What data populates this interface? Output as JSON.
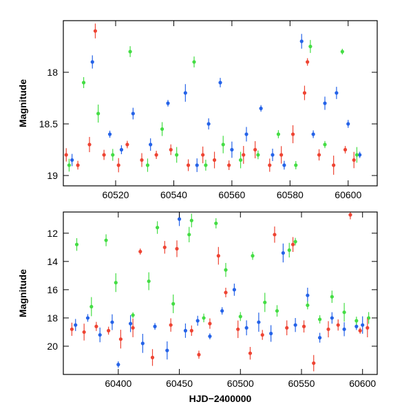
{
  "chart_data": [
    {
      "type": "scatter",
      "panel": "top",
      "xlabel": "",
      "ylabel": "Magnitude",
      "xlim": [
        60502,
        60610
      ],
      "ylim": [
        19.1,
        17.5
      ],
      "y_inverted": true,
      "xticks": [
        60520,
        60540,
        60560,
        60580,
        60600
      ],
      "xtick_labels": [
        "60520",
        "60540",
        "60560",
        "60580",
        "60600"
      ],
      "yticks": [
        18,
        18.5,
        19
      ],
      "ytick_labels": [
        "18",
        "18.5",
        "19"
      ],
      "grid": false,
      "series": [
        {
          "color": "#2563e8",
          "points": [
            [
              60505,
              18.85
            ],
            [
              60512,
              17.9
            ],
            [
              60518,
              18.6
            ],
            [
              60522,
              18.75
            ],
            [
              60526,
              18.4
            ],
            [
              60532,
              18.7
            ],
            [
              60538,
              18.3
            ],
            [
              60544,
              18.2
            ],
            [
              60548,
              18.9
            ],
            [
              60552,
              18.5
            ],
            [
              60556,
              18.1
            ],
            [
              60560,
              18.75
            ],
            [
              60565,
              18.6
            ],
            [
              60570,
              18.35
            ],
            [
              60574,
              18.8
            ],
            [
              60578,
              18.9
            ],
            [
              60584,
              17.7
            ],
            [
              60588,
              18.6
            ],
            [
              60592,
              18.3
            ],
            [
              60596,
              18.2
            ],
            [
              60600,
              18.5
            ],
            [
              60604,
              18.8
            ]
          ]
        },
        {
          "color": "#44dd44",
          "points": [
            [
              60504,
              18.9
            ],
            [
              60509,
              18.1
            ],
            [
              60514,
              18.4
            ],
            [
              60519,
              18.8
            ],
            [
              60525,
              17.8
            ],
            [
              60531,
              18.9
            ],
            [
              60536,
              18.55
            ],
            [
              60541,
              18.8
            ],
            [
              60547,
              17.9
            ],
            [
              60551,
              18.9
            ],
            [
              60557,
              18.7
            ],
            [
              60563,
              18.85
            ],
            [
              60569,
              18.8
            ],
            [
              60576,
              18.6
            ],
            [
              60582,
              18.9
            ],
            [
              60587,
              17.75
            ],
            [
              60592,
              18.7
            ],
            [
              60598,
              17.8
            ],
            [
              60603,
              18.8
            ]
          ]
        },
        {
          "color": "#ee4433",
          "points": [
            [
              60503,
              18.8
            ],
            [
              60507,
              18.9
            ],
            [
              60511,
              18.7
            ],
            [
              60513,
              17.6
            ],
            [
              60516,
              18.8
            ],
            [
              60521,
              18.9
            ],
            [
              60524,
              18.7
            ],
            [
              60529,
              18.85
            ],
            [
              60534,
              18.8
            ],
            [
              60539,
              18.75
            ],
            [
              60545,
              18.9
            ],
            [
              60550,
              18.8
            ],
            [
              60554,
              18.85
            ],
            [
              60559,
              18.9
            ],
            [
              60564,
              18.8
            ],
            [
              60568,
              18.75
            ],
            [
              60573,
              18.9
            ],
            [
              60577,
              18.8
            ],
            [
              60581,
              18.6
            ],
            [
              60585,
              18.2
            ],
            [
              60586,
              17.9
            ],
            [
              60590,
              18.8
            ],
            [
              60595,
              18.9
            ],
            [
              60599,
              18.75
            ],
            [
              60602,
              18.85
            ]
          ]
        }
      ]
    },
    {
      "type": "scatter",
      "panel": "bottom",
      "xlabel": "HJD−2400000",
      "ylabel": "Magnitude",
      "xlim": [
        60355,
        60612
      ],
      "ylim": [
        22,
        10.5
      ],
      "y_inverted": true,
      "xticks": [
        60400,
        60450,
        60500,
        60550,
        60600
      ],
      "xtick_labels": [
        "60400",
        "60450",
        "60500",
        "60550",
        "60600"
      ],
      "yticks": [
        12,
        14,
        16,
        18,
        20
      ],
      "ytick_labels": [
        "12",
        "14",
        "16",
        "18",
        "20"
      ],
      "grid": false,
      "series": [
        {
          "color": "#2563e8",
          "points": [
            [
              60365,
              18.5
            ],
            [
              60375,
              18.0
            ],
            [
              60385,
              19.2
            ],
            [
              60395,
              18.3
            ],
            [
              60400,
              21.3
            ],
            [
              60410,
              18.4
            ],
            [
              60420,
              19.8
            ],
            [
              60430,
              18.6
            ],
            [
              60440,
              20.3
            ],
            [
              60450,
              11.0
            ],
            [
              60455,
              18.9
            ],
            [
              60465,
              18.2
            ],
            [
              60475,
              19.3
            ],
            [
              60485,
              17.5
            ],
            [
              60495,
              16.0
            ],
            [
              60505,
              18.7
            ],
            [
              60515,
              18.3
            ],
            [
              60525,
              19.1
            ],
            [
              60535,
              13.4
            ],
            [
              60545,
              18.5
            ],
            [
              60555,
              16.4
            ],
            [
              60565,
              19.4
            ],
            [
              60575,
              18.0
            ],
            [
              60585,
              18.8
            ],
            [
              60595,
              18.6
            ],
            [
              60600,
              18.5
            ]
          ]
        },
        {
          "color": "#44dd44",
          "points": [
            [
              60366,
              12.8
            ],
            [
              60378,
              17.2
            ],
            [
              60390,
              12.5
            ],
            [
              60398,
              15.5
            ],
            [
              60412,
              17.8
            ],
            [
              60425,
              15.4
            ],
            [
              60432,
              11.6
            ],
            [
              60445,
              17.0
            ],
            [
              60458,
              12.1
            ],
            [
              60460,
              11.1
            ],
            [
              60470,
              18.0
            ],
            [
              60480,
              11.3
            ],
            [
              60488,
              14.6
            ],
            [
              60500,
              17.9
            ],
            [
              60510,
              13.6
            ],
            [
              60520,
              16.9
            ],
            [
              60530,
              17.5
            ],
            [
              60540,
              13.2
            ],
            [
              60545,
              12.6
            ],
            [
              60555,
              17.1
            ],
            [
              60565,
              18.1
            ],
            [
              60575,
              16.5
            ],
            [
              60585,
              17.6
            ],
            [
              60595,
              18.2
            ],
            [
              60605,
              18.0
            ]
          ]
        },
        {
          "color": "#ee4433",
          "points": [
            [
              60362,
              18.8
            ],
            [
              60372,
              19.0
            ],
            [
              60382,
              18.6
            ],
            [
              60392,
              18.9
            ],
            [
              60402,
              19.5
            ],
            [
              60412,
              18.7
            ],
            [
              60418,
              13.3
            ],
            [
              60428,
              20.8
            ],
            [
              60438,
              13.0
            ],
            [
              60443,
              18.5
            ],
            [
              60448,
              13.1
            ],
            [
              60460,
              18.9
            ],
            [
              60466,
              20.6
            ],
            [
              60475,
              18.4
            ],
            [
              60482,
              13.6
            ],
            [
              60488,
              16.2
            ],
            [
              60498,
              18.8
            ],
            [
              60508,
              20.5
            ],
            [
              60518,
              19.2
            ],
            [
              60528,
              12.1
            ],
            [
              60538,
              18.7
            ],
            [
              60543,
              12.8
            ],
            [
              60552,
              18.6
            ],
            [
              60560,
              21.2
            ],
            [
              60572,
              18.8
            ],
            [
              60580,
              18.5
            ],
            [
              60590,
              10.7
            ],
            [
              60598,
              18.9
            ],
            [
              60604,
              18.7
            ]
          ]
        }
      ]
    }
  ]
}
